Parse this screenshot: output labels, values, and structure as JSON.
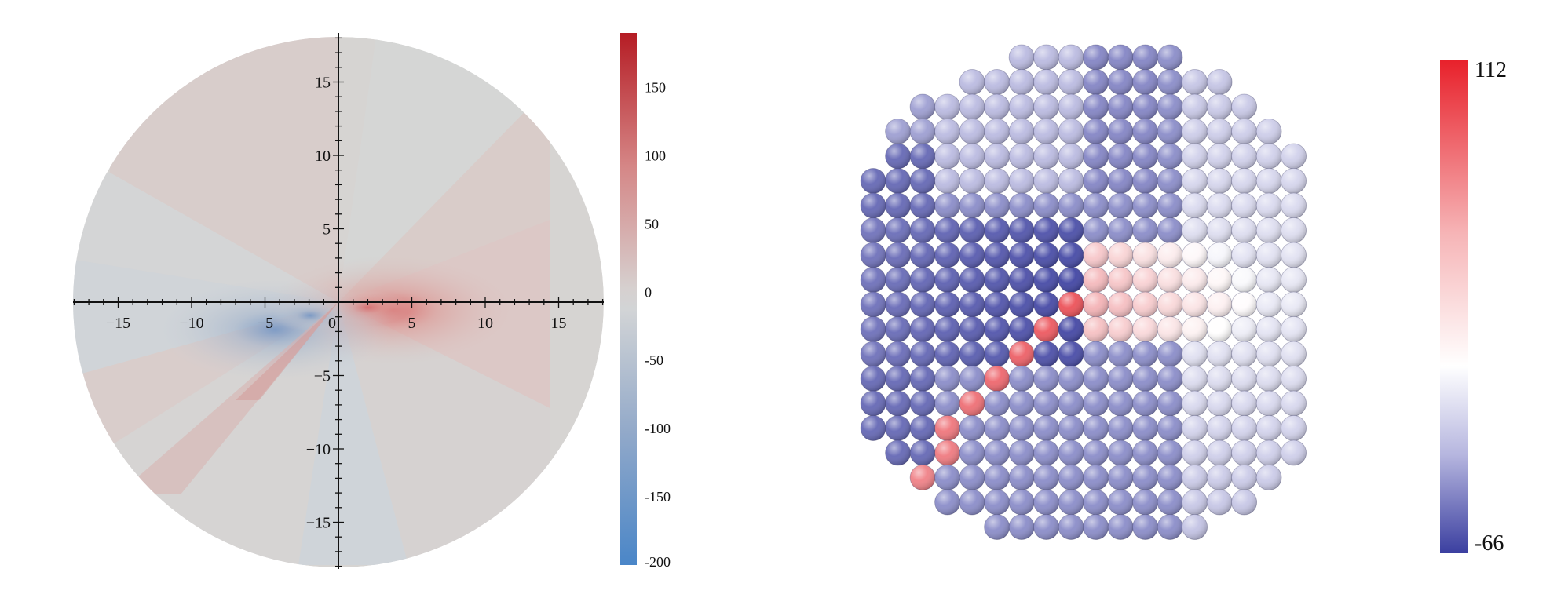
{
  "chart_data": [
    {
      "type": "heatmap",
      "title": "",
      "plot": "polar contour field",
      "axis_range": [
        -18,
        18
      ],
      "x_ticks": [
        -15,
        -10,
        -5,
        0,
        5,
        10,
        15
      ],
      "y_ticks": [
        15,
        10,
        5,
        -5,
        -10,
        -15
      ],
      "x_tick_labels": [
        "−15",
        "−10",
        "−5",
        "0",
        "5",
        "10",
        "15"
      ],
      "y_tick_labels": [
        "15",
        "10",
        "5",
        "−5",
        "−10",
        "−15"
      ],
      "colorbar": {
        "range": [
          -200,
          190
        ],
        "ticks": [
          150,
          100,
          50,
          0,
          -50,
          -100,
          -150,
          -200
        ],
        "tick_labels": [
          "150",
          "100",
          "50",
          "0",
          "-50",
          "-100",
          "-150",
          "-200"
        ],
        "colors": {
          "low": "#4a86c8",
          "mid": "#d8d8d8",
          "high": "#b51c24"
        }
      }
    },
    {
      "type": "heatmap",
      "title": "",
      "plot": "circular array of spheres (pin power distribution)",
      "colorbar": {
        "range": [
          -66,
          112
        ],
        "tick_labels": [
          "112",
          "-66"
        ],
        "colors": {
          "low": "#3b3fa0",
          "mid": "#ffffff",
          "high": "#e8212b"
        }
      }
    }
  ]
}
